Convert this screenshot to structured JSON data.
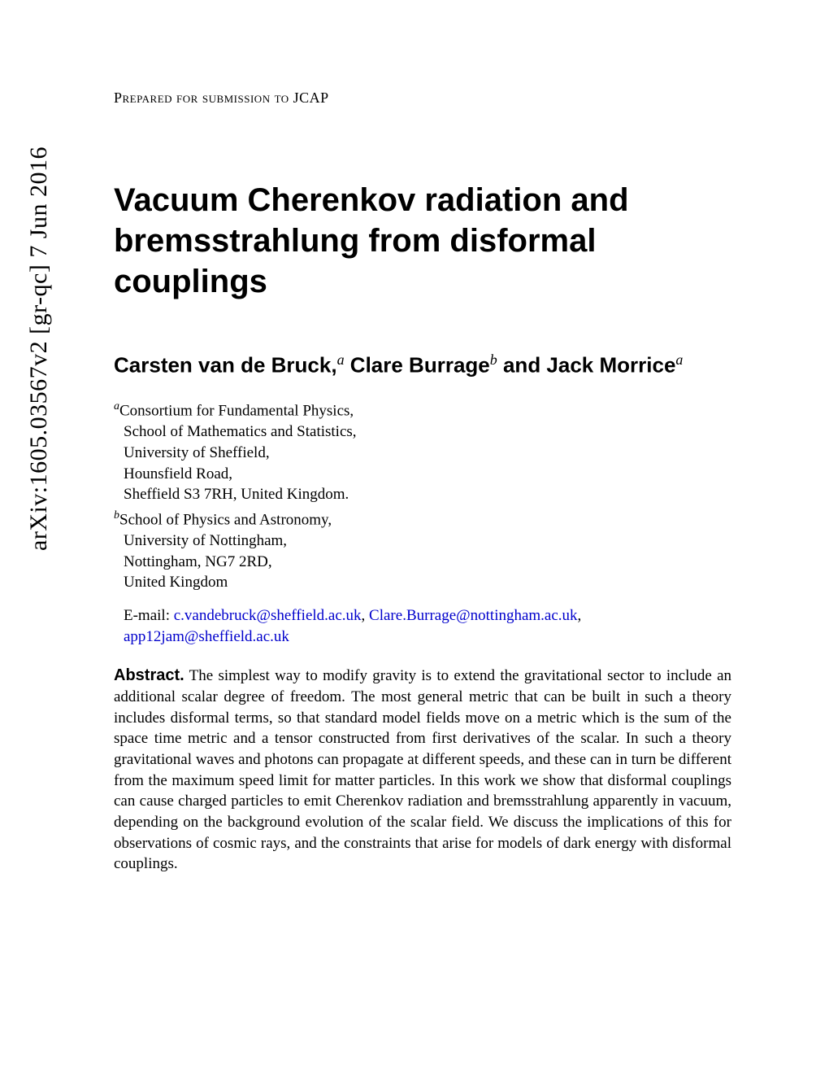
{
  "arxiv": {
    "id": "arXiv:1605.03567v2  [gr-qc]  7 Jun 2016"
  },
  "header": {
    "preprint": "Prepared for submission to JCAP"
  },
  "title": "Vacuum Cherenkov radiation and bremsstrahlung from disformal couplings",
  "authors": {
    "line1": "Carsten van de Bruck,",
    "sup1": "a",
    "line2": " Clare Burrage",
    "sup2": "b",
    "line3": " and Jack Morrice",
    "sup3": "a"
  },
  "affiliations": {
    "a": {
      "marker": "a",
      "lines": [
        "Consortium for Fundamental Physics,",
        "School of Mathematics and Statistics,",
        "University of Sheffield,",
        "Hounsfield Road,",
        "Sheffield S3 7RH, United Kingdom."
      ]
    },
    "b": {
      "marker": "b",
      "lines": [
        "School of Physics and Astronomy,",
        "University of Nottingham,",
        "Nottingham, NG7 2RD,",
        "United Kingdom"
      ]
    }
  },
  "emails": {
    "label": "E-mail: ",
    "list": [
      "c.vandebruck@sheffield.ac.uk",
      "Clare.Burrage@nottingham.ac.uk",
      "app12jam@sheffield.ac.uk"
    ]
  },
  "abstract": {
    "label": "Abstract.",
    "text": " The simplest way to modify gravity is to extend the gravitational sector to include an additional scalar degree of freedom. The most general metric that can be built in such a theory includes disformal terms, so that standard model fields move on a metric which is the sum of the space time metric and a tensor constructed from first derivatives of the scalar. In such a theory gravitational waves and photons can propagate at different speeds, and these can in turn be different from the maximum speed limit for matter particles. In this work we show that disformal couplings can cause charged particles to emit Cherenkov radiation and bremsstrahlung apparently in vacuum, depending on the background evolution of the scalar field. We discuss the implications of this for observations of cosmic rays, and the constraints that arise for models of dark energy with disformal couplings."
  },
  "colors": {
    "link": "#0000cc",
    "text": "#000000",
    "background": "#ffffff"
  }
}
